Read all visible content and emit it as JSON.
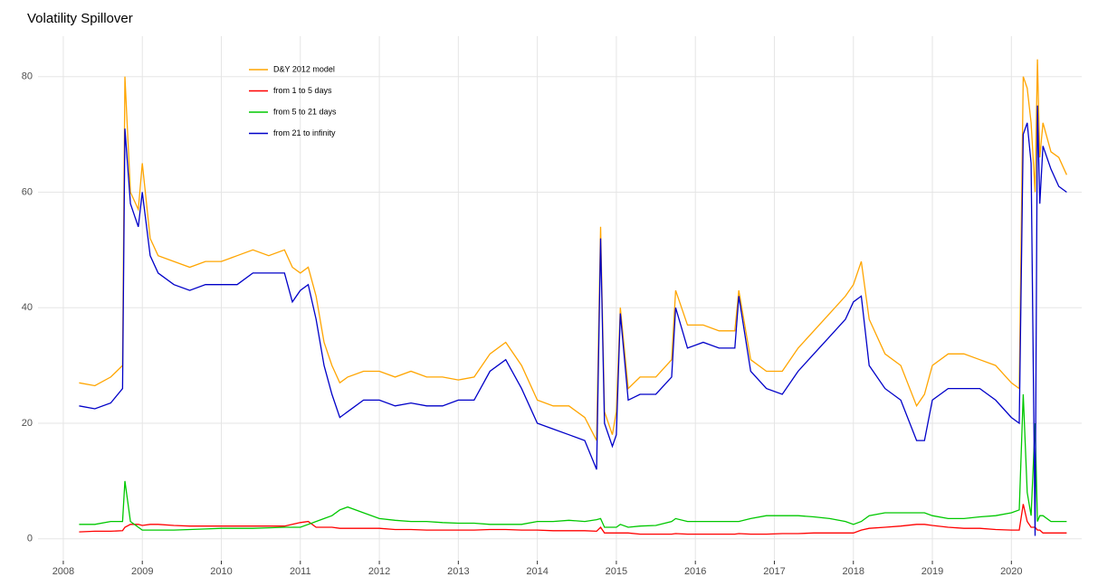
{
  "chart_data": {
    "type": "line",
    "title": "Volatility Spillover",
    "x": [
      2008.2,
      2008.4,
      2008.6,
      2008.75,
      2008.78,
      2008.85,
      2008.95,
      2009.0,
      2009.1,
      2009.2,
      2009.4,
      2009.6,
      2009.8,
      2010.0,
      2010.2,
      2010.4,
      2010.6,
      2010.8,
      2010.9,
      2011.0,
      2011.1,
      2011.2,
      2011.3,
      2011.4,
      2011.5,
      2011.6,
      2011.8,
      2012.0,
      2012.2,
      2012.4,
      2012.6,
      2012.8,
      2013.0,
      2013.2,
      2013.4,
      2013.6,
      2013.8,
      2014.0,
      2014.2,
      2014.4,
      2014.6,
      2014.75,
      2014.8,
      2014.85,
      2014.95,
      2015.0,
      2015.05,
      2015.15,
      2015.3,
      2015.5,
      2015.7,
      2015.75,
      2015.9,
      2016.1,
      2016.3,
      2016.5,
      2016.55,
      2016.7,
      2016.9,
      2017.1,
      2017.3,
      2017.5,
      2017.7,
      2017.9,
      2018.0,
      2018.1,
      2018.2,
      2018.4,
      2018.6,
      2018.8,
      2018.9,
      2019.0,
      2019.2,
      2019.4,
      2019.6,
      2019.8,
      2020.0,
      2020.1,
      2020.15,
      2020.2,
      2020.25,
      2020.3,
      2020.33,
      2020.36,
      2020.4,
      2020.5,
      2020.6,
      2020.7
    ],
    "series": [
      {
        "name": "D&Y 2012 model",
        "color": "#ffa500",
        "values": [
          27,
          26.5,
          28,
          30,
          80,
          60,
          57,
          65,
          52,
          49,
          48,
          47,
          48,
          48,
          49,
          50,
          49,
          50,
          47,
          46,
          47,
          42,
          34,
          30,
          27,
          28,
          29,
          29,
          28,
          29,
          28,
          28,
          27.5,
          28,
          32,
          34,
          30,
          24,
          23,
          23,
          21,
          17,
          54,
          22,
          18,
          22,
          40,
          26,
          28,
          28,
          31,
          43,
          37,
          37,
          36,
          36,
          43,
          31,
          29,
          29,
          33,
          36,
          39,
          42,
          44,
          48,
          38,
          32,
          30,
          23,
          25,
          30,
          32,
          32,
          31,
          30,
          27,
          26,
          80,
          78,
          72,
          60,
          83,
          66,
          72,
          67,
          66,
          63
        ]
      },
      {
        "name": "from 1 to 5 days",
        "color": "#ff0000",
        "values": [
          1.2,
          1.3,
          1.3,
          1.4,
          2,
          2.5,
          2.5,
          2.3,
          2.5,
          2.5,
          2.3,
          2.2,
          2.2,
          2.2,
          2.2,
          2.2,
          2.2,
          2.2,
          2.5,
          2.8,
          3,
          2,
          2,
          2,
          1.8,
          1.8,
          1.8,
          1.8,
          1.6,
          1.6,
          1.5,
          1.5,
          1.5,
          1.5,
          1.6,
          1.6,
          1.5,
          1.5,
          1.4,
          1.4,
          1.4,
          1.3,
          2,
          1,
          1,
          1,
          1,
          1,
          0.8,
          0.8,
          0.8,
          0.9,
          0.8,
          0.8,
          0.8,
          0.8,
          0.9,
          0.8,
          0.8,
          0.9,
          0.9,
          1,
          1,
          1,
          1,
          1.5,
          1.8,
          2,
          2.2,
          2.5,
          2.5,
          2.3,
          2,
          1.8,
          1.8,
          1.6,
          1.5,
          1.5,
          6,
          3,
          2,
          2,
          1.5,
          1.5,
          1,
          1,
          1,
          1
        ]
      },
      {
        "name": "from 5 to 21 days",
        "color": "#00c800",
        "values": [
          2.5,
          2.5,
          3,
          3,
          10,
          3,
          2,
          1.5,
          1.5,
          1.5,
          1.5,
          1.6,
          1.7,
          1.8,
          1.8,
          1.8,
          1.9,
          2,
          2,
          2,
          2.5,
          3,
          3.5,
          4,
          5,
          5.5,
          4.5,
          3.5,
          3.2,
          3,
          3,
          2.8,
          2.7,
          2.7,
          2.5,
          2.5,
          2.5,
          3,
          3,
          3.2,
          3,
          3.3,
          3.5,
          2,
          2,
          2,
          2.5,
          2,
          2.2,
          2.3,
          3,
          3.5,
          3,
          3,
          3,
          3,
          3,
          3.5,
          4,
          4,
          4,
          3.8,
          3.5,
          3,
          2.5,
          3,
          4,
          4.5,
          4.5,
          4.5,
          4.5,
          4,
          3.5,
          3.5,
          3.8,
          4,
          4.5,
          5,
          25,
          8,
          4,
          20,
          3,
          4,
          4,
          3,
          3,
          3
        ]
      },
      {
        "name": "from 21 to infinity",
        "color": "#0000c8",
        "values": [
          23,
          22.5,
          23.5,
          26,
          71,
          58,
          54,
          60,
          49,
          46,
          44,
          43,
          44,
          44,
          44,
          46,
          46,
          46,
          41,
          43,
          44,
          38,
          30,
          25,
          21,
          22,
          24,
          24,
          23,
          23.5,
          23,
          23,
          24,
          24,
          29,
          31,
          26,
          20,
          19,
          18,
          17,
          12,
          52,
          20,
          16,
          18,
          39,
          24,
          25,
          25,
          28,
          40,
          33,
          34,
          33,
          33,
          42,
          29,
          26,
          25,
          29,
          32,
          35,
          38,
          41,
          42,
          30,
          26,
          24,
          17,
          17,
          24,
          26,
          26,
          26,
          24,
          21,
          20,
          70,
          72,
          65,
          0.5,
          75,
          58,
          68,
          64,
          61,
          60
        ]
      }
    ],
    "xlim": [
      2007.68,
      2020.89
    ],
    "xticks": [
      2008,
      2009,
      2010,
      2011,
      2012,
      2013,
      2014,
      2015,
      2016,
      2017,
      2018,
      2019,
      2020
    ],
    "ylim": [
      -3.8,
      87
    ],
    "yticks": [
      0,
      20,
      40,
      60,
      80
    ],
    "grid": true
  }
}
